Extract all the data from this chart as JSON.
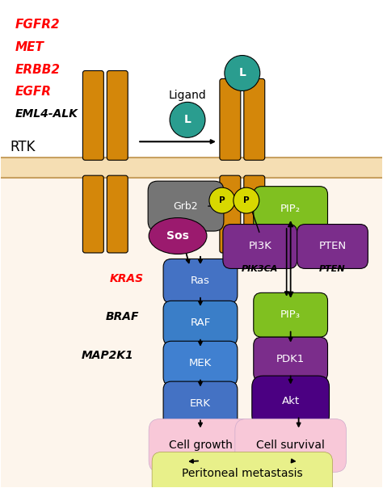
{
  "background_color": "#ffffff",
  "membrane_color": "#f5deb3",
  "receptor_color": "#d4870a",
  "ligand_color": "#2a9d8f",
  "gene_labels_red": [
    "FGFR2",
    "MET",
    "ERBB2",
    "EGFR"
  ],
  "gene_label_black": "EML4-ALK",
  "interior_color": "#fdf5ec",
  "grb2_color": "#757575",
  "sos_color": "#9b1a6e",
  "blue_light": "#4472c4",
  "blue_mid": "#3a7ec8",
  "blue_dark": "#2255b0",
  "green_pip": "#80c020",
  "purple_pi3k": "#7b2d8b",
  "purple_dark": "#4b0082",
  "pink": "#f8c8d8",
  "yellow_green": "#e8f08a",
  "yellow_p": "#e8e800",
  "P_color": "#d8d800"
}
